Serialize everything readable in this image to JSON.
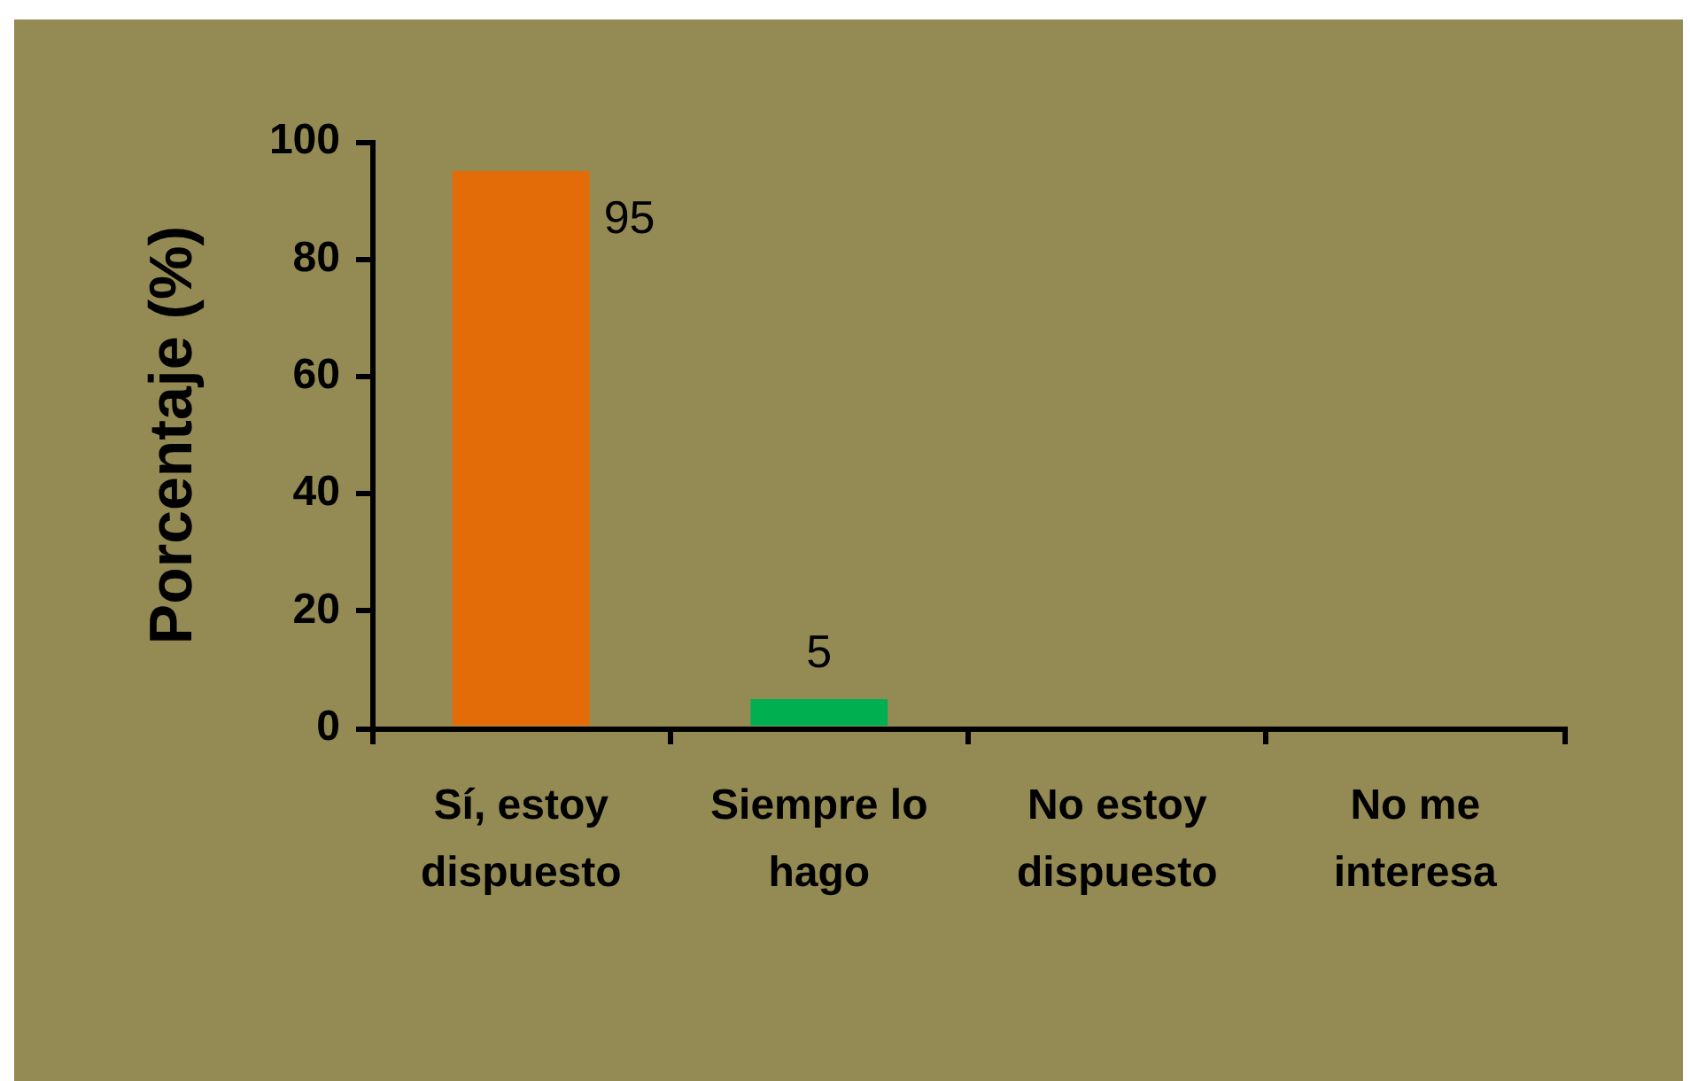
{
  "chart_data": {
    "type": "bar",
    "ylabel": "Porcentaje (%)",
    "categories": [
      "Sí, estoy dispuesto",
      "Siempre lo hago",
      "No estoy dispuesto",
      "No me interesa"
    ],
    "values": [
      95,
      5,
      0,
      0
    ],
    "colors": [
      "#e36c09",
      "#00b050",
      null,
      null
    ],
    "value_labels": [
      "95",
      "5",
      null,
      null
    ],
    "ylim": [
      0,
      100
    ],
    "yticks": [
      0,
      20,
      40,
      60,
      80,
      100
    ]
  }
}
